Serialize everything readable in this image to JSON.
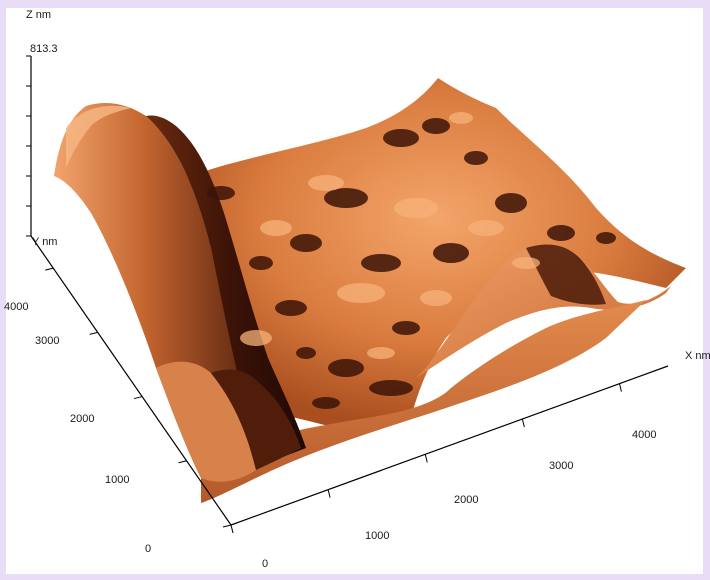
{
  "chart_data": {
    "type": "surface",
    "z_axis": {
      "label": "Z nm",
      "max_label": "813.3",
      "max": 813.3
    },
    "y_axis": {
      "label": "Y nm",
      "ticks": [
        "0",
        "1000",
        "2000",
        "3000",
        "4000"
      ],
      "range": [
        0,
        4500
      ]
    },
    "x_axis": {
      "label": "X nm",
      "ticks": [
        "0",
        "1000",
        "2000",
        "3000",
        "4000"
      ],
      "range": [
        0,
        4500
      ]
    },
    "colors": {
      "background": "#e9dcf6",
      "surface_high": "#f7b27a",
      "surface_mid": "#c86a32",
      "surface_low": "#3a1408"
    },
    "grid": false
  }
}
